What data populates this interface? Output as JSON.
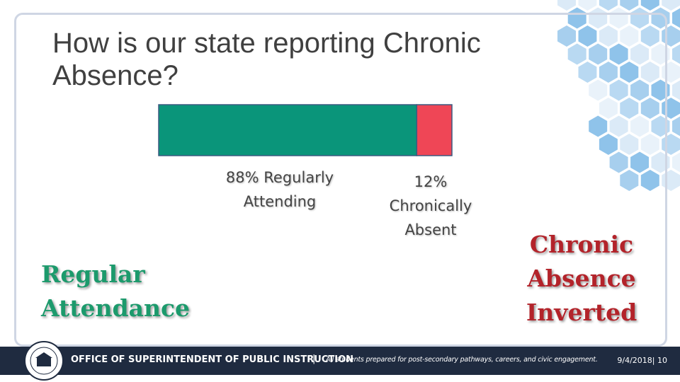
{
  "title": "How is our state reporting Chronic Absence?",
  "chart_data": {
    "type": "stacked-bar",
    "xlim": [
      0,
      100
    ],
    "series": [
      {
        "name": "Regularly Attending",
        "color": "#0a957a",
        "values": [
          88
        ],
        "value_labels": [
          "88%"
        ]
      },
      {
        "name": "Chronically Absent",
        "color": "#ef4656",
        "values": [
          12
        ],
        "value_labels": [
          "12%"
        ]
      }
    ]
  },
  "left_caption": "Regular Attendance",
  "right_caption": "Chronic Absence Inverted",
  "footer": {
    "org": "OFFICE OF SUPERINTENDENT OF PUBLIC INSTRUCTION",
    "separator": "|",
    "tagline": "All students prepared for post-secondary pathways, careers, and civic engagement.",
    "date_page": "9/4/2018| 10"
  }
}
